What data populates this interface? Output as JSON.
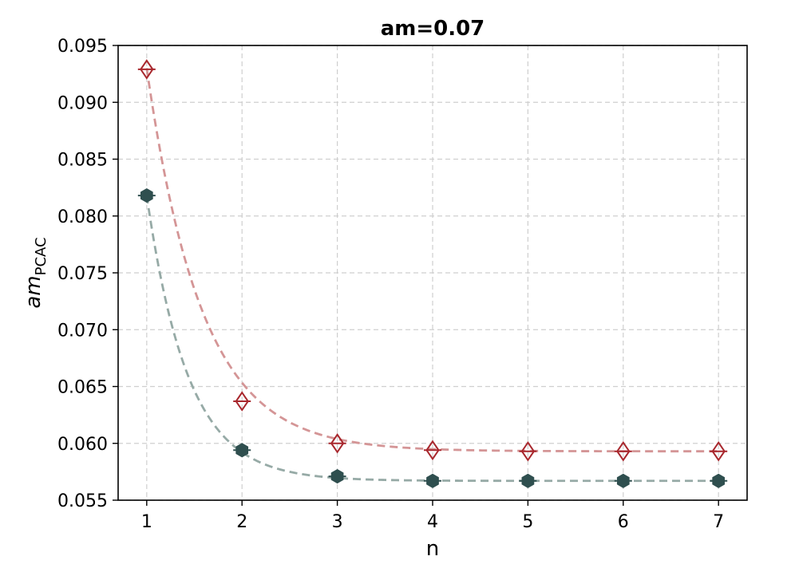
{
  "chart_data": {
    "type": "scatter",
    "title": "am=0.07",
    "xlabel": "n",
    "ylabel_main": "am",
    "ylabel_sub": "PCAC",
    "xlim": [
      0.7,
      7.3
    ],
    "ylim": [
      0.055,
      0.095
    ],
    "xticks": [
      1,
      2,
      3,
      4,
      5,
      6,
      7
    ],
    "xtick_labels": [
      "1",
      "2",
      "3",
      "4",
      "5",
      "6",
      "7"
    ],
    "yticks": [
      0.055,
      0.06,
      0.065,
      0.07,
      0.075,
      0.08,
      0.085,
      0.09,
      0.095
    ],
    "ytick_labels": [
      "0.055",
      "0.060",
      "0.065",
      "0.070",
      "0.075",
      "0.080",
      "0.085",
      "0.090",
      "0.095"
    ],
    "grid": true,
    "series": [
      {
        "marker": "diamond-open",
        "color": "#a8272d",
        "fit_color": "#d49596",
        "x": [
          1,
          2,
          3,
          4,
          5,
          6,
          7
        ],
        "y": [
          0.0929,
          0.0637,
          0.06,
          0.0594,
          0.0593,
          0.0593,
          0.0593
        ],
        "fit": {
          "a": 0.0593,
          "b": 0.0337,
          "k": 1.72
        }
      },
      {
        "marker": "hexagon-filled",
        "color": "#2f4f4f",
        "fit_color": "#96aaa6",
        "x": [
          1,
          2,
          3,
          4,
          5,
          6,
          7
        ],
        "y": [
          0.0818,
          0.0594,
          0.0571,
          0.0567,
          0.0567,
          0.0567,
          0.0567
        ],
        "fit": {
          "a": 0.0567,
          "b": 0.0251,
          "k": 2.3
        }
      }
    ]
  }
}
